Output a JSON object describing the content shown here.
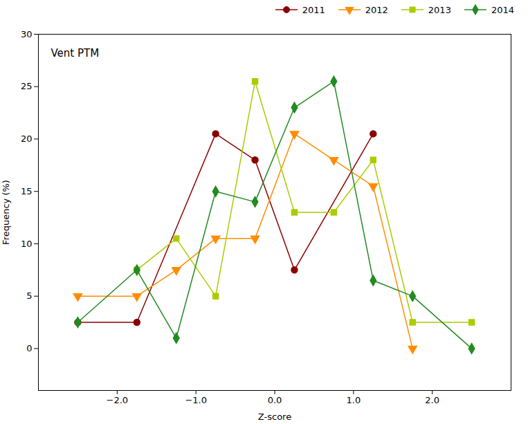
{
  "chart_data": {
    "type": "line",
    "title": "Vent PTM",
    "xlabel": "Z-score",
    "ylabel": "Frequency (%)",
    "xlim": [
      -3.0,
      3.0
    ],
    "ylim": [
      -4,
      30
    ],
    "xticks": [
      -2,
      -1,
      0,
      1,
      2
    ],
    "yticks": [
      0,
      5,
      10,
      15,
      20,
      25,
      30
    ],
    "legend": "top-right",
    "series": [
      {
        "name": "2011",
        "color": "#8B0000",
        "marker": "circle",
        "x": [
          -2.5,
          -1.75,
          -0.75,
          -0.25,
          0.25,
          1.25
        ],
        "values": [
          2.5,
          2.5,
          20.5,
          18.0,
          7.5,
          20.5
        ]
      },
      {
        "name": "2012",
        "color": "#FF8C00",
        "marker": "triangle-down",
        "x": [
          -2.5,
          -1.75,
          -1.25,
          -0.75,
          -0.25,
          0.25,
          0.75,
          1.25,
          1.75
        ],
        "values": [
          5.0,
          5.0,
          7.5,
          10.5,
          10.5,
          20.5,
          18.0,
          15.5,
          0.0
        ]
      },
      {
        "name": "2013",
        "color": "#AACC00",
        "marker": "square",
        "x": [
          -1.75,
          -1.25,
          -0.75,
          -0.25,
          0.25,
          0.75,
          1.25,
          1.75,
          2.5
        ],
        "values": [
          7.5,
          10.5,
          5.0,
          25.5,
          13.0,
          13.0,
          18.0,
          2.5,
          2.5
        ]
      },
      {
        "name": "2014",
        "color": "#228B22",
        "marker": "diamond",
        "x": [
          -2.5,
          -1.75,
          -1.25,
          -0.75,
          -0.25,
          0.25,
          0.75,
          1.25,
          1.75,
          2.5
        ],
        "values": [
          2.5,
          7.5,
          1.0,
          15.0,
          14.0,
          23.0,
          25.5,
          6.5,
          5.0,
          0.0
        ]
      }
    ]
  }
}
